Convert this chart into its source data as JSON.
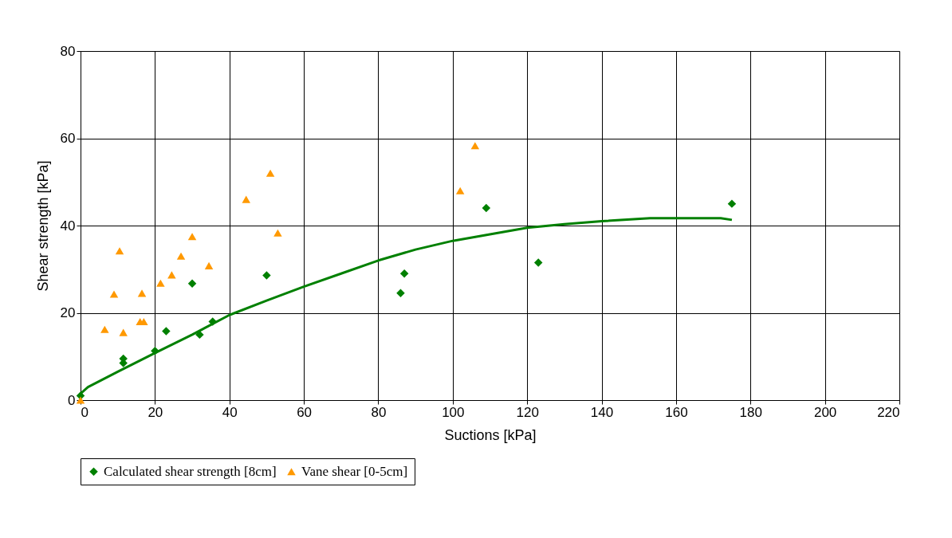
{
  "chart_data": {
    "type": "scatter",
    "xlabel": "Suctions [kPa]",
    "ylabel": "Shear strength [kPa]",
    "xlim": [
      0,
      220
    ],
    "ylim": [
      0,
      80
    ],
    "xticks": [
      0,
      20,
      40,
      60,
      80,
      100,
      120,
      140,
      160,
      180,
      200,
      220
    ],
    "yticks": [
      0,
      20,
      40,
      60,
      80
    ],
    "grid": true,
    "legend": "bottom",
    "series": [
      {
        "name": "Calculated shear strength [8cm]",
        "marker": "diamond",
        "color": "#008000",
        "x": [
          0,
          11.5,
          11.5,
          20,
          23,
          30,
          32,
          35.5,
          50,
          86,
          87,
          109,
          123,
          175
        ],
        "values": [
          1,
          8.5,
          9.5,
          11.3,
          15.8,
          26.7,
          15,
          18,
          28.6,
          24.5,
          29,
          44,
          31.5,
          45
        ]
      },
      {
        "name": "Vane shear [0-5cm]",
        "marker": "triangle",
        "color": "#ff9900",
        "x": [
          0,
          6.5,
          9,
          10.5,
          11.5,
          16,
          16.5,
          17,
          21.5,
          24.5,
          27,
          30,
          34.5,
          44.5,
          51,
          53,
          102,
          106
        ],
        "values": [
          0,
          16.2,
          24.3,
          34.2,
          15.5,
          18,
          24.5,
          18,
          26.8,
          28.7,
          33,
          37.5,
          30.8,
          46,
          52,
          38.3,
          48,
          58.3
        ]
      },
      {
        "type": "line",
        "marker": "none",
        "line_style": "solid",
        "color": "#008000",
        "x": [
          0,
          2,
          10,
          20,
          30,
          40,
          50,
          60,
          70,
          80,
          90,
          100,
          110,
          120,
          130,
          140,
          153,
          172,
          175
        ],
        "values": [
          1.5,
          3,
          6.5,
          10.8,
          15,
          19.5,
          22.8,
          26,
          29,
          32,
          34.5,
          36.5,
          38,
          39.5,
          40.3,
          41,
          41.7,
          41.7,
          41.3
        ]
      }
    ]
  }
}
